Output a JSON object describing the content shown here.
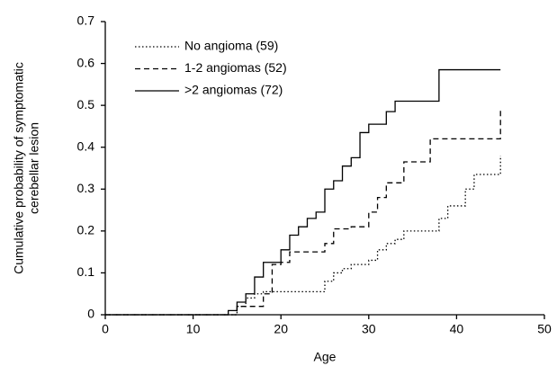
{
  "chart_data": {
    "type": "line",
    "step": "post",
    "x_label": "Age",
    "y_label": [
      "Cumulative probability of symptomatic",
      "cerebellar lesion"
    ],
    "xlim": [
      0,
      50
    ],
    "xticks": [
      0,
      10,
      20,
      30,
      40,
      50
    ],
    "ylim": [
      0,
      0.7
    ],
    "yticks": [
      0,
      0.1,
      0.2,
      0.3,
      0.4,
      0.5,
      0.6,
      0.7
    ],
    "legend": "upper left",
    "series": [
      {
        "name": "No angioma (59)",
        "color": "#000000",
        "line_style": "dotted",
        "x": [
          0,
          14,
          15,
          16,
          17,
          18,
          24,
          25,
          26,
          27,
          28,
          30,
          31,
          32,
          33,
          34,
          37,
          38,
          39,
          40,
          41,
          42,
          44,
          45
        ],
        "values": [
          0,
          0,
          0.02,
          0.04,
          0.05,
          0.055,
          0.055,
          0.08,
          0.1,
          0.11,
          0.12,
          0.13,
          0.155,
          0.17,
          0.18,
          0.2,
          0.2,
          0.23,
          0.26,
          0.26,
          0.3,
          0.335,
          0.335,
          0.38
        ]
      },
      {
        "name": "1-2 angiomas (52)",
        "color": "#000000",
        "line_style": "dashed",
        "x": [
          0,
          14,
          15,
          17,
          18,
          19,
          20,
          21,
          24,
          25,
          26,
          28,
          29,
          30,
          31,
          32,
          33,
          34,
          36,
          37,
          44,
          45
        ],
        "values": [
          0,
          0,
          0.02,
          0.02,
          0.05,
          0.12,
          0.125,
          0.15,
          0.15,
          0.17,
          0.205,
          0.21,
          0.21,
          0.245,
          0.28,
          0.315,
          0.315,
          0.365,
          0.365,
          0.42,
          0.42,
          0.495
        ]
      },
      {
        "name": ">2 angiomas (72)",
        "color": "#000000",
        "line_style": "solid",
        "x": [
          0,
          14,
          15,
          16,
          17,
          18,
          19,
          20,
          21,
          22,
          23,
          24,
          25,
          26,
          27,
          28,
          29,
          30,
          31,
          32,
          33,
          35,
          37,
          38,
          45
        ],
        "values": [
          0,
          0.01,
          0.03,
          0.05,
          0.09,
          0.125,
          0.125,
          0.155,
          0.19,
          0.21,
          0.23,
          0.245,
          0.3,
          0.32,
          0.355,
          0.375,
          0.435,
          0.455,
          0.455,
          0.485,
          0.51,
          0.51,
          0.51,
          0.585,
          0.585
        ]
      }
    ]
  }
}
